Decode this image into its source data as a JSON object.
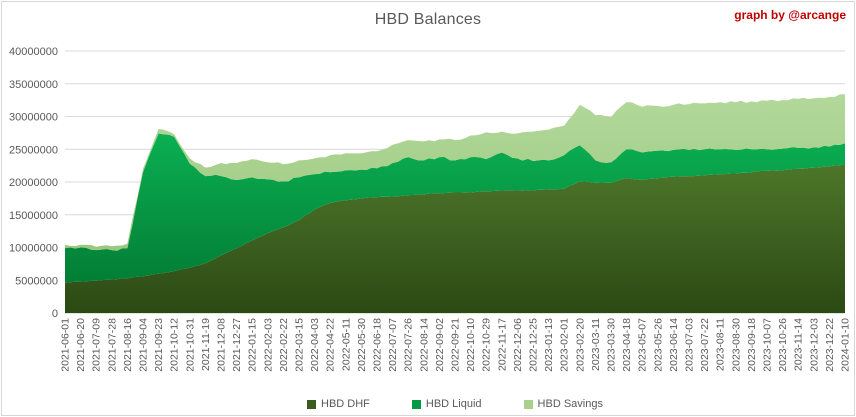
{
  "title": "HBD Balances",
  "credit": "graph by @arcange",
  "colors": {
    "text": "#595959",
    "grid": "#d9d9d9",
    "baseline": "#c9c9c9",
    "credit": "#c00000",
    "background": "#ffffff"
  },
  "y_axis": {
    "min": 0,
    "max": 40000000,
    "step": 5000000,
    "tick_labels": [
      "0",
      "5000000",
      "10000000",
      "15000000",
      "20000000",
      "25000000",
      "30000000",
      "35000000",
      "40000000"
    ]
  },
  "chart_data": {
    "type": "area",
    "stacked": true,
    "title": "HBD Balances",
    "xlabel": "",
    "ylabel": "",
    "ylim": [
      0,
      40000000
    ],
    "grid": true,
    "legend_position": "bottom",
    "categories": [
      "2021-06-01",
      "2021-06-20",
      "2021-07-09",
      "2021-07-28",
      "2021-08-16",
      "2021-09-04",
      "2021-09-23",
      "2021-10-12",
      "2021-10-31",
      "2021-11-19",
      "2021-12-08",
      "2021-12-27",
      "2022-01-15",
      "2022-02-03",
      "2022-02-22",
      "2022-03-15",
      "2022-04-03",
      "2022-04-22",
      "2022-05-11",
      "2022-05-30",
      "2022-06-18",
      "2022-07-07",
      "2022-07-26",
      "2022-08-14",
      "2022-09-02",
      "2022-09-21",
      "2022-10-10",
      "2022-10-29",
      "2022-11-17",
      "2022-12-06",
      "2022-12-25",
      "2023-01-13",
      "2023-02-01",
      "2023-02-20",
      "2023-03-11",
      "2023-03-30",
      "2023-04-18",
      "2023-05-07",
      "2023-05-26",
      "2023-06-14",
      "2023-07-03",
      "2023-07-22",
      "2023-08-11",
      "2023-08-30",
      "2023-09-18",
      "2023-10-07",
      "2023-10-26",
      "2023-11-14",
      "2023-12-03",
      "2023-12-22",
      "2024-01-10"
    ],
    "series": [
      {
        "name": "HBD DHF",
        "color": "#3a5c20",
        "gradient": [
          "#527e2d",
          "#2b4914"
        ],
        "gradient_y": [
          140,
          313
        ],
        "values": [
          4600000,
          4800000,
          4900000,
          5100000,
          5300000,
          5600000,
          6000000,
          6400000,
          6900000,
          7600000,
          8800000,
          9900000,
          11100000,
          12200000,
          13100000,
          14200000,
          15800000,
          16800000,
          17200000,
          17500000,
          17700000,
          17800000,
          18000000,
          18100000,
          18300000,
          18400000,
          18400000,
          18600000,
          18700000,
          18700000,
          18700000,
          18900000,
          19000000,
          20100000,
          19900000,
          19900000,
          20600000,
          20300000,
          20600000,
          20800000,
          20900000,
          21000000,
          21200000,
          21300000,
          21500000,
          21700000,
          21800000,
          22000000,
          22200000,
          22400000,
          22700000
        ]
      },
      {
        "name": "HBD Liquid",
        "color": "#009a45",
        "gradient": [
          "#0cb254",
          "#00742f"
        ],
        "gradient_y": [
          125,
          313
        ],
        "values": [
          5300000,
          5200000,
          4700000,
          4500000,
          4600000,
          15900000,
          21400000,
          20500000,
          15900000,
          13300000,
          12100000,
          10400000,
          9600000,
          8200000,
          7000000,
          6500000,
          5400000,
          4700000,
          4600000,
          4400000,
          4400000,
          5100000,
          5800000,
          5200000,
          5500000,
          4900000,
          5400000,
          4900000,
          5800000,
          4900000,
          4500000,
          4400000,
          5100000,
          5500000,
          3400000,
          3100000,
          4400000,
          4200000,
          4200000,
          4100000,
          4000000,
          4000000,
          3800000,
          3600000,
          3500000,
          3300000,
          3300000,
          3200000,
          3100000,
          3000000,
          3200000
        ]
      },
      {
        "name": "HBD Savings",
        "color": "#a9d08e",
        "gradient": [
          "#b3d99c",
          "#96c577"
        ],
        "gradient_y": [
          90,
          280
        ],
        "values": [
          500000,
          400000,
          500000,
          600000,
          700000,
          500000,
          700000,
          400000,
          800000,
          1300000,
          2000000,
          2600000,
          2800000,
          2600000,
          2600000,
          2600000,
          2400000,
          2600000,
          2600000,
          2500000,
          2600000,
          2800000,
          2600000,
          2900000,
          2700000,
          3100000,
          3300000,
          4100000,
          3200000,
          3800000,
          4500000,
          4700000,
          4500000,
          6200000,
          6900000,
          6900000,
          7200000,
          7000000,
          6800000,
          6900000,
          7000000,
          7000000,
          7200000,
          7300000,
          7300000,
          7400000,
          7400000,
          7500000,
          7500000,
          7600000,
          7500000
        ]
      }
    ]
  },
  "legend": {
    "items": [
      "HBD DHF",
      "HBD Liquid",
      "HBD Savings"
    ]
  }
}
